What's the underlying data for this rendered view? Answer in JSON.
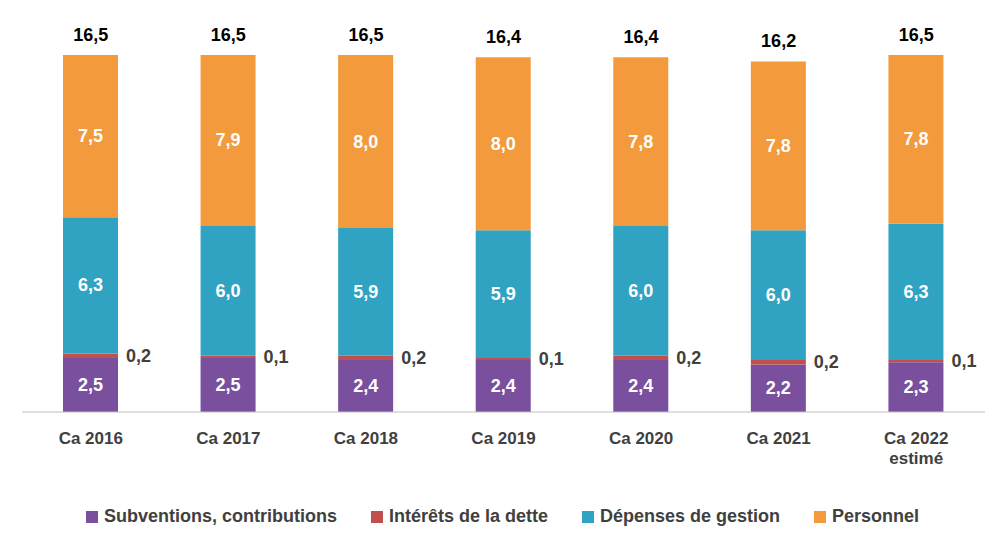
{
  "chart_data": {
    "type": "bar",
    "stacked": true,
    "data_labels": true,
    "tick_labels": "x",
    "legend": "bottom",
    "categories": [
      "Ca 2016",
      "Ca 2017",
      "Ca 2018",
      "Ca 2019",
      "Ca 2020",
      "Ca 2021",
      "Ca 2022 estimé"
    ],
    "ylim": [
      0,
      16.5
    ],
    "series": [
      {
        "name": "Subventions, contributions",
        "color": "#7a4f9e",
        "values": [
          2.5,
          2.5,
          2.4,
          2.4,
          2.4,
          2.2,
          2.3
        ],
        "value_labels": [
          "2,5",
          "2,5",
          "2,4",
          "2,4",
          "2,4",
          "2,2",
          "2,3"
        ]
      },
      {
        "name": "Intérêts de la dette",
        "color": "#c0504d",
        "values": [
          0.2,
          0.1,
          0.2,
          0.1,
          0.2,
          0.2,
          0.1
        ],
        "value_labels": [
          "0,2",
          "0,1",
          "0,2",
          "0,1",
          "0,2",
          "0,2",
          "0,1"
        ]
      },
      {
        "name": "Dépenses de gestion",
        "color": "#31a3c2",
        "values": [
          6.3,
          6.0,
          5.9,
          5.9,
          6.0,
          6.0,
          6.3
        ],
        "value_labels": [
          "6,3",
          "6,0",
          "5,9",
          "5,9",
          "6,0",
          "6,0",
          "6,3"
        ]
      },
      {
        "name": "Personnel",
        "color": "#f39a3c",
        "values": [
          7.5,
          7.9,
          8.0,
          8.0,
          7.8,
          7.8,
          7.8
        ],
        "value_labels": [
          "7,5",
          "7,9",
          "8,0",
          "8,0",
          "7,8",
          "7,8",
          "7,8"
        ]
      }
    ],
    "totals": [
      16.5,
      16.5,
      16.5,
      16.4,
      16.4,
      16.2,
      16.5
    ],
    "total_labels": [
      "16,5",
      "16,5",
      "16,5",
      "16,4",
      "16,4",
      "16,2",
      "16,5"
    ]
  }
}
